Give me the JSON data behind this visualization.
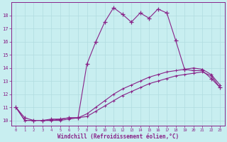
{
  "x_main": [
    0,
    1,
    2,
    3,
    4,
    5,
    6,
    7,
    8,
    9,
    10,
    11,
    12,
    13,
    14,
    15,
    16,
    17,
    18,
    19,
    20,
    21,
    22,
    23
  ],
  "y_main": [
    11.0,
    10.2,
    10.0,
    10.0,
    10.1,
    10.1,
    10.2,
    10.2,
    14.3,
    16.0,
    17.5,
    18.6,
    18.1,
    17.5,
    18.2,
    17.8,
    18.5,
    18.2,
    16.1,
    13.9,
    13.8,
    13.8,
    13.2,
    12.5
  ],
  "x_line1": [
    0,
    1,
    2,
    3,
    4,
    5,
    6,
    7,
    8,
    9,
    10,
    11,
    12,
    13,
    14,
    15,
    16,
    17,
    18,
    19,
    20,
    21,
    22,
    23
  ],
  "y_line1": [
    11.0,
    10.0,
    10.0,
    10.0,
    10.0,
    10.1,
    10.2,
    10.2,
    10.5,
    11.0,
    11.5,
    12.0,
    12.4,
    12.7,
    13.0,
    13.3,
    13.5,
    13.7,
    13.8,
    13.9,
    14.0,
    13.9,
    13.5,
    12.7
  ],
  "x_line2": [
    0,
    1,
    2,
    3,
    4,
    5,
    6,
    7,
    8,
    9,
    10,
    11,
    12,
    13,
    14,
    15,
    16,
    17,
    18,
    19,
    20,
    21,
    22,
    23
  ],
  "y_line2": [
    11.0,
    10.0,
    10.0,
    10.0,
    10.0,
    10.0,
    10.1,
    10.2,
    10.3,
    10.7,
    11.1,
    11.5,
    11.9,
    12.2,
    12.5,
    12.8,
    13.0,
    13.2,
    13.4,
    13.5,
    13.6,
    13.7,
    13.4,
    12.5
  ],
  "line_color": "#882288",
  "bg_color": "#c8eef0",
  "grid_color": "#b0dce0",
  "axis_color": "#882288",
  "xlabel": "Windchill (Refroidissement éolien,°C)",
  "xlim": [
    -0.5,
    23.5
  ],
  "ylim": [
    9.6,
    19.0
  ],
  "yticks": [
    10,
    11,
    12,
    13,
    14,
    15,
    16,
    17,
    18
  ],
  "xticks": [
    0,
    1,
    2,
    3,
    4,
    5,
    6,
    7,
    8,
    9,
    10,
    11,
    12,
    13,
    14,
    15,
    16,
    17,
    18,
    19,
    20,
    21,
    22,
    23
  ],
  "marker_size": 3,
  "line_width": 0.8
}
